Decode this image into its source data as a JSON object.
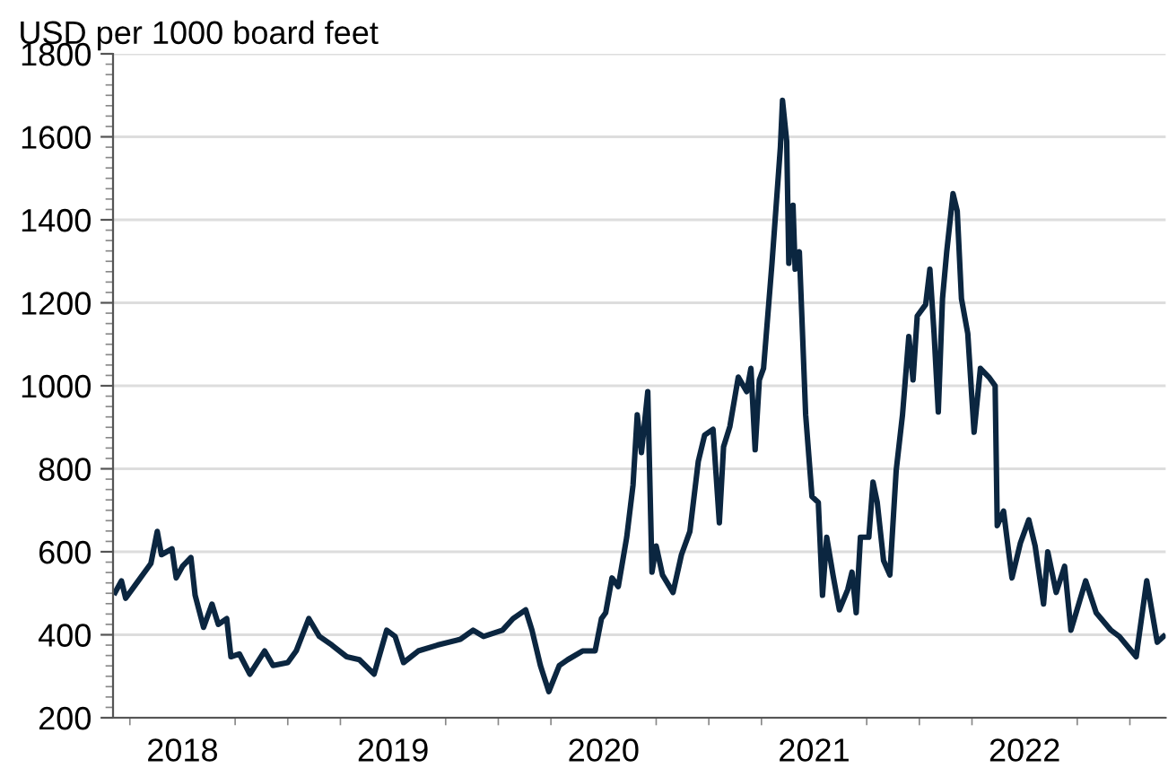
{
  "chart_data": {
    "type": "line",
    "ylabel": "USD per 1000 board feet",
    "x": [
      2017.68,
      2017.71,
      2017.73,
      2017.79,
      2017.85,
      2017.88,
      2017.9,
      2017.95,
      2017.97,
      2018.0,
      2018.04,
      2018.06,
      2018.1,
      2018.14,
      2018.17,
      2018.21,
      2018.23,
      2018.27,
      2018.32,
      2018.39,
      2018.43,
      2018.5,
      2018.54,
      2018.6,
      2018.65,
      2018.71,
      2018.78,
      2018.84,
      2018.91,
      2018.97,
      2019.01,
      2019.05,
      2019.12,
      2019.21,
      2019.32,
      2019.38,
      2019.43,
      2019.52,
      2019.57,
      2019.63,
      2019.66,
      2019.7,
      2019.74,
      2019.79,
      2019.83,
      2019.9,
      2019.96,
      2019.99,
      2020.01,
      2020.04,
      2020.07,
      2020.11,
      2020.14,
      2020.16,
      2020.18,
      2020.21,
      2020.23,
      2020.25,
      2020.28,
      2020.33,
      2020.37,
      2020.41,
      2020.45,
      2020.48,
      2020.52,
      2020.55,
      2020.57,
      2020.6,
      2020.64,
      2020.68,
      2020.7,
      2020.72,
      2020.74,
      2020.76,
      2020.8,
      2020.84,
      2020.85,
      2020.87,
      2020.88,
      2020.9,
      2020.91,
      2020.93,
      2020.96,
      2020.99,
      2021.02,
      2021.04,
      2021.06,
      2021.09,
      2021.12,
      2021.16,
      2021.18,
      2021.2,
      2021.22,
      2021.26,
      2021.28,
      2021.3,
      2021.33,
      2021.36,
      2021.39,
      2021.42,
      2021.45,
      2021.47,
      2021.49,
      2021.53,
      2021.55,
      2021.57,
      2021.59,
      2021.61,
      2021.63,
      2021.66,
      2021.68,
      2021.7,
      2021.73,
      2021.76,
      2021.79,
      2021.83,
      2021.86,
      2021.87,
      2021.9,
      2021.94,
      2021.98,
      2022.02,
      2022.05,
      2022.09,
      2022.11,
      2022.15,
      2022.19,
      2022.22,
      2022.29,
      2022.34,
      2022.41,
      2022.45,
      2022.53,
      2022.58,
      2022.63,
      2022.66
    ],
    "series": [
      {
        "color": "#0b2640",
        "values": [
          502,
          530,
          488,
          530,
          572,
          649,
          593,
          607,
          537,
          565,
          586,
          495,
          418,
          474,
          425,
          439,
          347,
          354,
          305,
          361,
          326,
          333,
          361,
          439,
          396,
          375,
          347,
          340,
          305,
          411,
          396,
          333,
          361,
          375,
          389,
          411,
          396,
          411,
          439,
          460,
          411,
          326,
          263,
          326,
          340,
          361,
          361,
          439,
          453,
          537,
          516,
          635,
          761,
          930,
          839,
          986,
          551,
          614,
          544,
          502,
          593,
          649,
          818,
          881,
          895,
          670,
          853,
          902,
          1021,
          986,
          1042,
          846,
          1014,
          1042,
          1295,
          1575,
          1688,
          1589,
          1295,
          1435,
          1281,
          1323,
          930,
          733,
          719,
          495,
          635,
          544,
          460,
          509,
          551,
          453,
          635,
          635,
          768,
          719,
          579,
          544,
          796,
          930,
          1119,
          1014,
          1168,
          1196,
          1281,
          1126,
          937,
          1210,
          1323,
          1463,
          1421,
          1210,
          1126,
          888,
          1042,
          1021,
          1000,
          663,
          698,
          537,
          621,
          677,
          614,
          474,
          600,
          502,
          565,
          411,
          530,
          453,
          411,
          396,
          347,
          530,
          382,
          396
        ]
      }
    ],
    "xlim": [
      2017.67,
      2022.67
    ],
    "xticks": [
      2018,
      2019,
      2020,
      2021,
      2022
    ],
    "ylim": [
      200,
      1800
    ],
    "yticks": [
      200,
      400,
      600,
      800,
      1000,
      1200,
      1400,
      1600,
      1800
    ],
    "grid": "y",
    "line_style": "solid",
    "marker": "none"
  }
}
